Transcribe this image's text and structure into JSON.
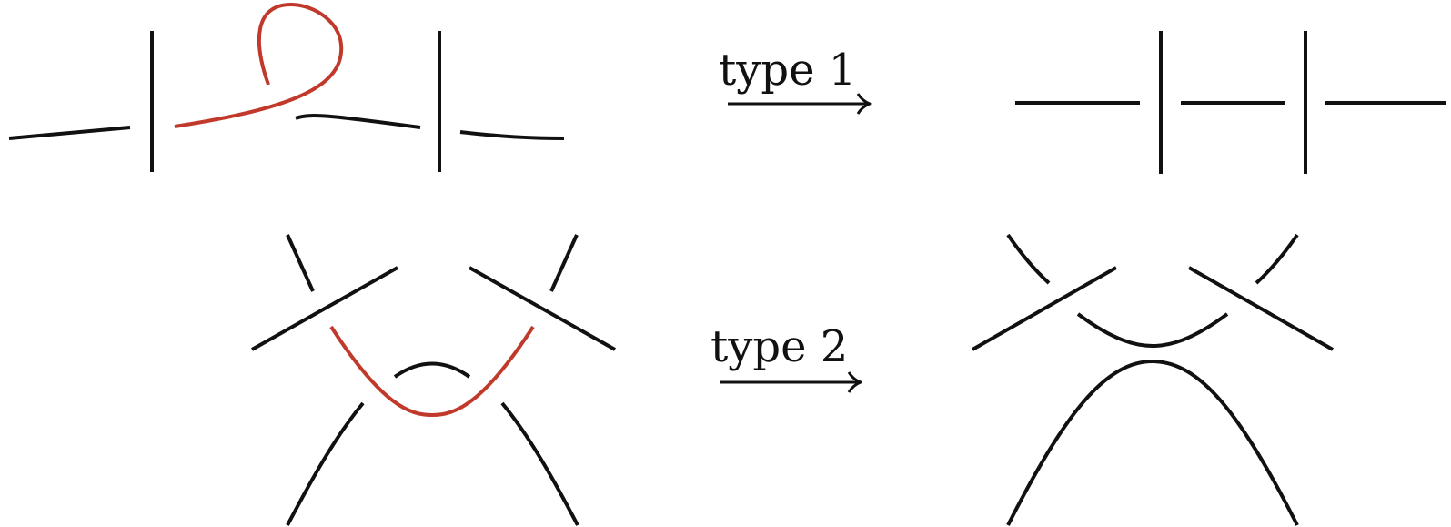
{
  "colors": {
    "strand": "#111111",
    "highlight": "#c0392b",
    "background": "#ffffff"
  },
  "moves": [
    {
      "id": "move-1",
      "label": "type 1"
    },
    {
      "id": "move-2",
      "label": "type 2"
    }
  ]
}
